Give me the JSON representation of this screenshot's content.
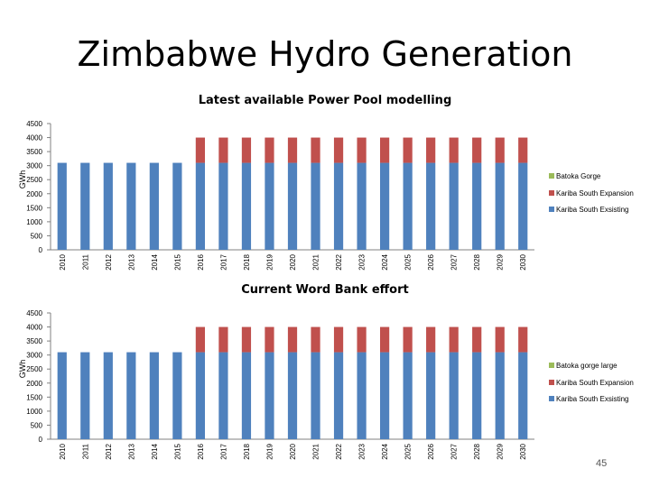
{
  "slide": {
    "title": "Zimbabwe Hydro Generation",
    "page_number": "45"
  },
  "colors": {
    "kariba_existing": "#4F81BD",
    "kariba_expansion": "#C0504D",
    "batoka": "#9BBB59"
  },
  "chart_data": [
    {
      "type": "bar",
      "stacked": true,
      "title": "Latest available Power Pool modelling",
      "ylabel": "GWh",
      "ylim": [
        0,
        4500
      ],
      "yticks": [
        0,
        500,
        1000,
        1500,
        2000,
        2500,
        3000,
        3500,
        4000,
        4500
      ],
      "categories": [
        "2010",
        "2011",
        "2012",
        "2013",
        "2014",
        "2015",
        "2016",
        "2017",
        "2018",
        "2019",
        "2020",
        "2021",
        "2022",
        "2023",
        "2024",
        "2025",
        "2026",
        "2027",
        "2028",
        "2029",
        "2030"
      ],
      "legend_position": "right",
      "series": [
        {
          "name": "Kariba South Exsisting",
          "color": "#4F81BD",
          "values": [
            3100,
            3100,
            3100,
            3100,
            3100,
            3100,
            3100,
            3100,
            3100,
            3100,
            3100,
            3100,
            3100,
            3100,
            3100,
            3100,
            3100,
            3100,
            3100,
            3100,
            3100
          ]
        },
        {
          "name": "Kariba South Expansion",
          "color": "#C0504D",
          "values": [
            0,
            0,
            0,
            0,
            0,
            0,
            900,
            900,
            900,
            900,
            900,
            900,
            900,
            900,
            900,
            900,
            900,
            900,
            900,
            900,
            900
          ]
        },
        {
          "name": "Batoka Gorge",
          "color": "#9BBB59",
          "values": [
            0,
            0,
            0,
            0,
            0,
            0,
            0,
            0,
            0,
            0,
            0,
            0,
            0,
            0,
            0,
            0,
            0,
            0,
            0,
            0,
            0
          ]
        }
      ]
    },
    {
      "type": "bar",
      "stacked": true,
      "title": "Current Word Bank effort",
      "ylabel": "GWh",
      "ylim": [
        0,
        4500
      ],
      "yticks": [
        0,
        500,
        1000,
        1500,
        2000,
        2500,
        3000,
        3500,
        4000,
        4500
      ],
      "categories": [
        "2010",
        "2011",
        "2012",
        "2013",
        "2014",
        "2015",
        "2016",
        "2017",
        "2018",
        "2019",
        "2020",
        "2021",
        "2022",
        "2023",
        "2024",
        "2025",
        "2026",
        "2027",
        "2028",
        "2029",
        "2030"
      ],
      "legend_position": "right",
      "series": [
        {
          "name": "Kariba South Exsisting",
          "color": "#4F81BD",
          "values": [
            3100,
            3100,
            3100,
            3100,
            3100,
            3100,
            3100,
            3100,
            3100,
            3100,
            3100,
            3100,
            3100,
            3100,
            3100,
            3100,
            3100,
            3100,
            3100,
            3100,
            3100
          ]
        },
        {
          "name": "Kariba South Expansion",
          "color": "#C0504D",
          "values": [
            0,
            0,
            0,
            0,
            0,
            0,
            900,
            900,
            900,
            900,
            900,
            900,
            900,
            900,
            900,
            900,
            900,
            900,
            900,
            900,
            900
          ]
        },
        {
          "name": "Batoka gorge large",
          "color": "#9BBB59",
          "values": [
            0,
            0,
            0,
            0,
            0,
            0,
            0,
            0,
            0,
            0,
            0,
            0,
            0,
            0,
            0,
            0,
            0,
            0,
            0,
            0,
            0
          ]
        }
      ]
    }
  ]
}
